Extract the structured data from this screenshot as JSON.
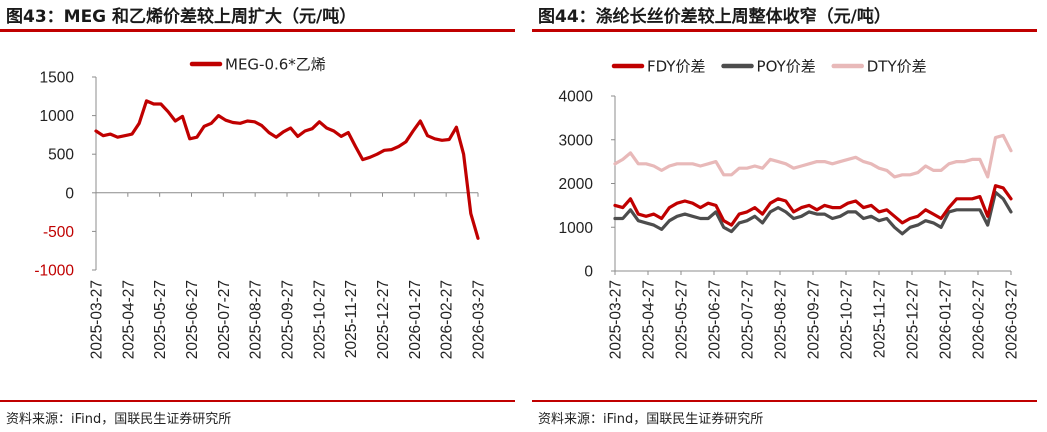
{
  "left": {
    "title": "图43：MEG 和乙烯价差较上周扩大（元/吨）",
    "source": "资料来源：iFind，国联民生证券研究所",
    "accent_color": "#c00000",
    "chart_data": {
      "type": "line",
      "title": "图43：MEG 和乙烯价差较上周扩大（元/吨）",
      "xlabel": "",
      "ylabel": "",
      "ylim": [
        -1000,
        1500
      ],
      "yticks": [
        "1500",
        "1000",
        "500",
        "0",
        "-500",
        "-1000"
      ],
      "negative_tick_color": "#c00000",
      "xticks": [
        "2025-03-27",
        "2025-04-27",
        "2025-05-27",
        "2025-06-27",
        "2025-07-27",
        "2025-08-27",
        "2025-09-27",
        "2025-10-27",
        "2025-11-27",
        "2025-12-27",
        "2026-01-27",
        "2026-02-27",
        "2026-03-27"
      ],
      "legend_position": "top",
      "series": [
        {
          "name": "MEG-0.6*乙烯",
          "color": "#c00000",
          "values": [
            800,
            740,
            760,
            720,
            740,
            760,
            900,
            1190,
            1150,
            1150,
            1050,
            930,
            990,
            700,
            720,
            860,
            900,
            1000,
            940,
            910,
            900,
            930,
            920,
            870,
            780,
            720,
            790,
            840,
            730,
            800,
            830,
            920,
            840,
            800,
            730,
            780,
            600,
            430,
            460,
            500,
            550,
            560,
            600,
            660,
            800,
            930,
            740,
            700,
            680,
            690,
            850,
            500,
            -270,
            -590
          ]
        }
      ]
    }
  },
  "right": {
    "title": "图44：涤纶长丝价差较上周整体收窄（元/吨）",
    "source": "资料来源：iFind，国联民生证券研究所",
    "chart_data": {
      "type": "line",
      "title": "图44：涤纶长丝价差较上周整体收窄（元/吨）",
      "xlabel": "",
      "ylabel": "",
      "ylim": [
        0,
        4000
      ],
      "yticks": [
        "4000",
        "3000",
        "2000",
        "1000",
        "0"
      ],
      "xticks": [
        "2025-03-27",
        "2025-04-27",
        "2025-05-27",
        "2025-06-27",
        "2025-07-27",
        "2025-08-27",
        "2025-09-27",
        "2025-10-27",
        "2025-11-27",
        "2025-12-27",
        "2026-01-27",
        "2026-02-27",
        "2026-03-27"
      ],
      "legend_position": "top",
      "series": [
        {
          "name": "FDY价差",
          "color": "#c00000",
          "values": [
            1500,
            1450,
            1650,
            1300,
            1250,
            1300,
            1200,
            1450,
            1550,
            1600,
            1550,
            1450,
            1550,
            1500,
            1150,
            1050,
            1300,
            1350,
            1450,
            1300,
            1550,
            1650,
            1600,
            1350,
            1450,
            1500,
            1400,
            1500,
            1450,
            1450,
            1550,
            1600,
            1450,
            1500,
            1350,
            1400,
            1250,
            1100,
            1200,
            1250,
            1400,
            1300,
            1200,
            1450,
            1650,
            1650,
            1650,
            1700,
            1250,
            1950,
            1900,
            1650
          ]
        },
        {
          "name": "POY价差",
          "color": "#4d4d4d",
          "values": [
            1200,
            1200,
            1400,
            1150,
            1100,
            1050,
            950,
            1150,
            1250,
            1300,
            1250,
            1200,
            1200,
            1350,
            1000,
            900,
            1100,
            1150,
            1250,
            1100,
            1350,
            1450,
            1350,
            1200,
            1250,
            1350,
            1300,
            1300,
            1200,
            1250,
            1350,
            1350,
            1200,
            1250,
            1150,
            1200,
            1000,
            850,
            1000,
            1050,
            1150,
            1100,
            1000,
            1350,
            1400,
            1400,
            1400,
            1400,
            1050,
            1800,
            1650,
            1350
          ]
        },
        {
          "name": "DTY价差",
          "color": "#e8b9b9",
          "values": [
            2450,
            2550,
            2700,
            2450,
            2450,
            2400,
            2300,
            2400,
            2450,
            2450,
            2450,
            2400,
            2450,
            2500,
            2200,
            2200,
            2350,
            2350,
            2400,
            2350,
            2550,
            2500,
            2450,
            2350,
            2400,
            2450,
            2500,
            2500,
            2450,
            2500,
            2550,
            2600,
            2500,
            2450,
            2350,
            2300,
            2150,
            2200,
            2200,
            2250,
            2400,
            2300,
            2300,
            2450,
            2500,
            2500,
            2550,
            2550,
            2150,
            3050,
            3100,
            2750
          ]
        }
      ]
    }
  }
}
